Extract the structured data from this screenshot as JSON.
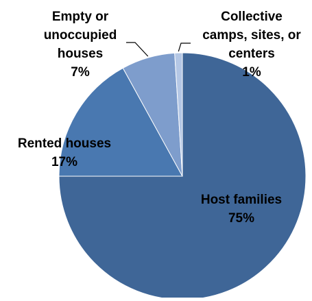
{
  "chart_data": {
    "type": "pie",
    "categories": [
      "Host families",
      "Rented houses",
      "Empty or unoccupied houses",
      "Collective camps, sites, or centers"
    ],
    "values": [
      75,
      17,
      7,
      1
    ],
    "colors": [
      "#3f6697",
      "#4978b0",
      "#7e9dcc",
      "#b4c7e5"
    ],
    "labels": [
      {
        "lines": [
          "Host families"
        ],
        "percent": "75%"
      },
      {
        "lines": [
          "Rented houses"
        ],
        "percent": "17%"
      },
      {
        "lines": [
          "Empty or",
          "unoccupied",
          "houses"
        ],
        "percent": "7%"
      },
      {
        "lines": [
          "Collective",
          "camps, sites, or",
          "centers"
        ],
        "percent": "1%"
      }
    ],
    "start_angle_deg": 0,
    "direction": "clockwise",
    "legend": "none"
  }
}
